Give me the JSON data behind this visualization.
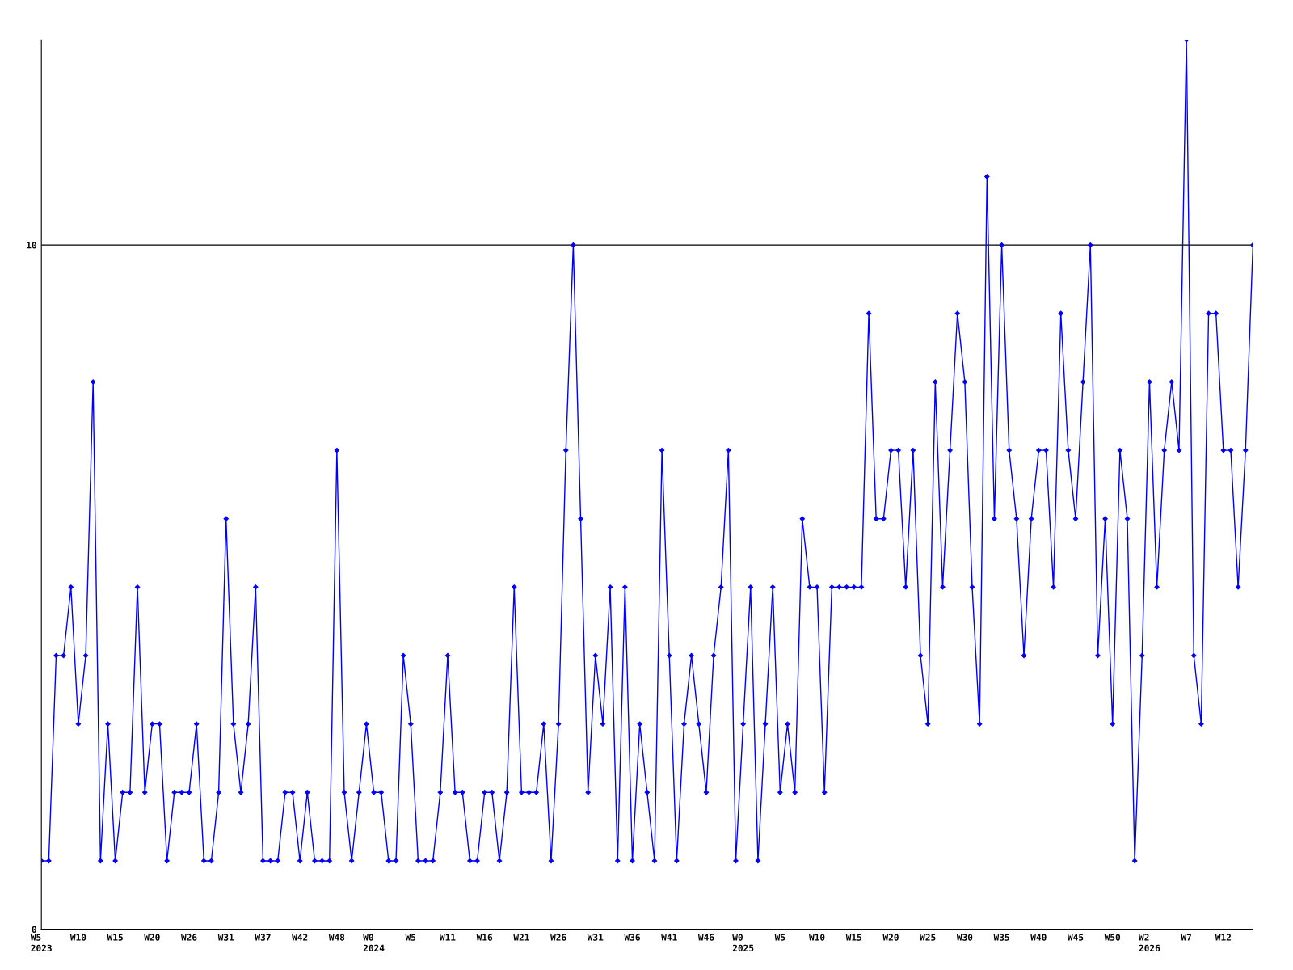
{
  "chart_data": {
    "type": "line",
    "categories": [
      "W5\n2023",
      null,
      null,
      null,
      null,
      "W10",
      null,
      null,
      null,
      null,
      "W15",
      null,
      null,
      null,
      null,
      "W20",
      null,
      null,
      null,
      null,
      "W26",
      null,
      null,
      null,
      null,
      "W31",
      null,
      null,
      null,
      null,
      "W37",
      null,
      null,
      null,
      null,
      "W42",
      null,
      null,
      null,
      null,
      "W48",
      null,
      null,
      null,
      null,
      "W0\n2024",
      null,
      null,
      null,
      null,
      "W5",
      null,
      null,
      null,
      null,
      "W11",
      null,
      null,
      null,
      null,
      "W16",
      null,
      null,
      null,
      null,
      "W21",
      null,
      null,
      null,
      null,
      "W26",
      null,
      null,
      null,
      null,
      "W31",
      null,
      null,
      null,
      null,
      "W36",
      null,
      null,
      null,
      null,
      "W41",
      null,
      null,
      null,
      null,
      "W46",
      null,
      null,
      null,
      null,
      "W0\n2025",
      null,
      null,
      null,
      null,
      "W5",
      null,
      null,
      null,
      null,
      "W10",
      null,
      null,
      null,
      null,
      "W15",
      null,
      null,
      null,
      null,
      "W20",
      null,
      null,
      null,
      null,
      "W25",
      null,
      null,
      null,
      null,
      "W30",
      null,
      null,
      null,
      null,
      "W35",
      null,
      null,
      null,
      null,
      "W40",
      null,
      null,
      null,
      null,
      "W45",
      null,
      null,
      null,
      null,
      "W50",
      null,
      null,
      null,
      null,
      "W2\n2026",
      null,
      null,
      null,
      null,
      "W7",
      null,
      null,
      null,
      null,
      "W12",
      null,
      null,
      null,
      null
    ],
    "series": [
      {
        "color": "#0000ff",
        "values": [
          1,
          1,
          4,
          4,
          5,
          3,
          4,
          8,
          1,
          3,
          1,
          2,
          2,
          5,
          2,
          3,
          3,
          1,
          2,
          2,
          2,
          3,
          1,
          1,
          2,
          6,
          3,
          2,
          3,
          5,
          1,
          1,
          1,
          2,
          2,
          1,
          2,
          1,
          1,
          1,
          7,
          2,
          1,
          2,
          3,
          2,
          2,
          1,
          1,
          4,
          3,
          1,
          1,
          1,
          2,
          4,
          2,
          2,
          1,
          1,
          2,
          2,
          1,
          2,
          5,
          2,
          2,
          2,
          3,
          1,
          3,
          7,
          10,
          6,
          2,
          4,
          3,
          5,
          1,
          5,
          1,
          3,
          2,
          1,
          7,
          4,
          1,
          3,
          4,
          3,
          2,
          4,
          5,
          7,
          1,
          3,
          5,
          1,
          3,
          5,
          2,
          3,
          2,
          6,
          5,
          5,
          2,
          5,
          5,
          5,
          5,
          5,
          9,
          6,
          6,
          7,
          7,
          5,
          7,
          4,
          3,
          8,
          5,
          7,
          9,
          8,
          5,
          3,
          11,
          6,
          10,
          7,
          6,
          4,
          6,
          7,
          7,
          5,
          9,
          7,
          6,
          8,
          10,
          4,
          6,
          3,
          7,
          6,
          1,
          4,
          8,
          5,
          7,
          8,
          7,
          13,
          4,
          3,
          9,
          9,
          7,
          7,
          5,
          7,
          10
        ]
      }
    ],
    "ylim": [
      0,
      13
    ],
    "yticks": [
      0,
      10
    ],
    "grid": "y",
    "marker": "diamond",
    "line_style": "solid"
  }
}
